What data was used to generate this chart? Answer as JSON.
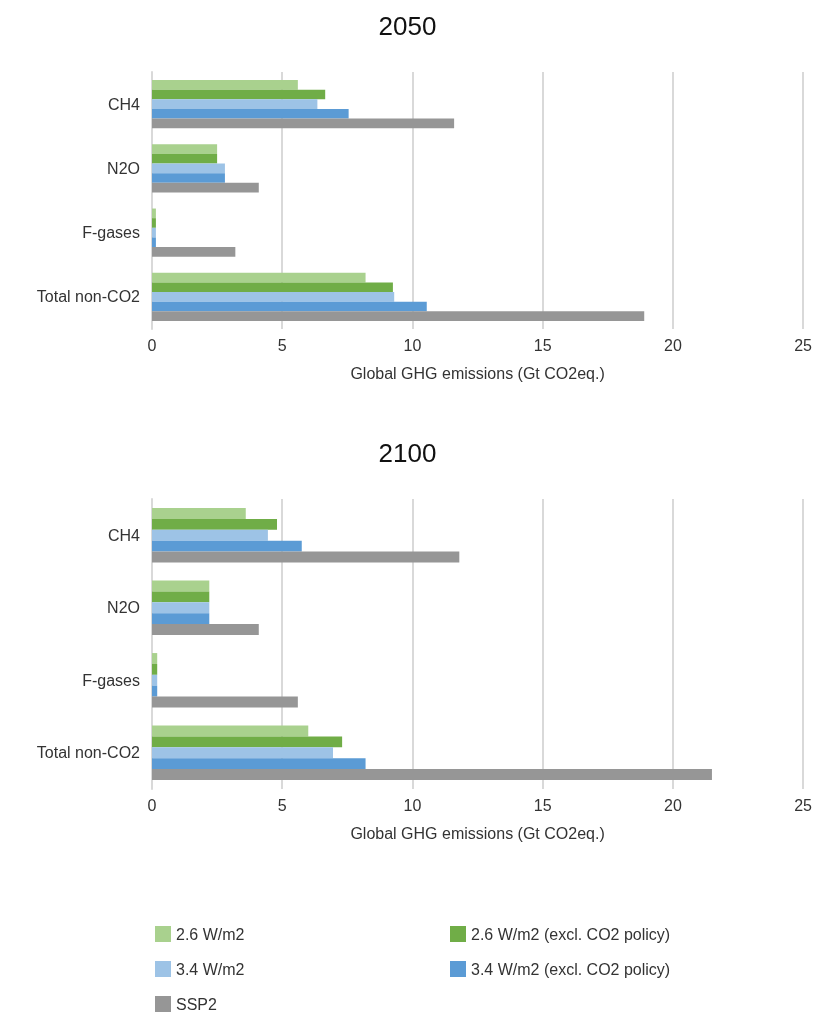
{
  "chart_data": [
    {
      "type": "bar",
      "title": "2050",
      "xlabel": "Global GHG emissions (Gt CO2eq.)",
      "orientation": "horizontal",
      "categories": [
        "CH4",
        "N2O",
        "F-gases",
        "Total non-CO2"
      ],
      "xlim": [
        0,
        25
      ],
      "xticks": [
        0,
        5,
        10,
        15,
        20,
        25
      ],
      "grid": "x",
      "legend": false,
      "series": [
        {
          "color": "#a9d18e",
          "values": [
            5.6,
            2.5,
            0.15,
            8.2
          ]
        },
        {
          "color": "#70ad47",
          "values": [
            6.65,
            2.5,
            0.15,
            9.25
          ]
        },
        {
          "color": "#9dc3e6",
          "values": [
            6.35,
            2.8,
            0.15,
            9.3
          ]
        },
        {
          "color": "#5b9bd5",
          "values": [
            7.55,
            2.8,
            0.15,
            10.55
          ]
        },
        {
          "color": "#969696",
          "values": [
            11.6,
            4.1,
            3.2,
            18.9
          ]
        }
      ]
    },
    {
      "type": "bar",
      "title": "2100",
      "xlabel": "Global GHG emissions (Gt CO2eq.)",
      "orientation": "horizontal",
      "categories": [
        "CH4",
        "N2O",
        "F-gases",
        "Total non-CO2"
      ],
      "xlim": [
        0,
        25
      ],
      "xticks": [
        0,
        5,
        10,
        15,
        20,
        25
      ],
      "grid": "x",
      "legend": "bottom",
      "series": [
        {
          "name": "2.6 W/m2",
          "color": "#a9d18e",
          "values": [
            3.6,
            2.2,
            0.2,
            6.0
          ]
        },
        {
          "name": "2.6 W/m2 (excl. CO2 policy)",
          "color": "#70ad47",
          "values": [
            4.8,
            2.2,
            0.2,
            7.3
          ]
        },
        {
          "name": "3.4 W/m2",
          "color": "#9dc3e6",
          "values": [
            4.45,
            2.2,
            0.2,
            6.95
          ]
        },
        {
          "name": "3.4 W/m2 (excl. CO2 policy)",
          "color": "#5b9bd5",
          "values": [
            5.75,
            2.2,
            0.2,
            8.2
          ]
        },
        {
          "name": "SSP2",
          "color": "#969696",
          "values": [
            11.8,
            4.1,
            5.6,
            21.5
          ]
        }
      ]
    }
  ]
}
